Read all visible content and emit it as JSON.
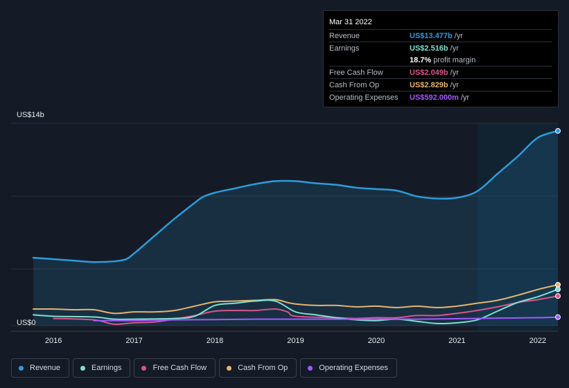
{
  "tooltip": {
    "date": "Mar 31 2022",
    "rows": [
      {
        "label": "Revenue",
        "value": "US$13.477b",
        "unit": "/yr",
        "color": "#2d9cdb"
      },
      {
        "label": "Earnings",
        "value": "US$2.516b",
        "unit": "/yr",
        "color": "#7ee0cf"
      },
      {
        "label": "",
        "value": "18.7%",
        "unit": "profit margin",
        "color": "#ffffff"
      },
      {
        "label": "Free Cash Flow",
        "value": "US$2.049b",
        "unit": "/yr",
        "color": "#d8558a"
      },
      {
        "label": "Cash From Op",
        "value": "US$2.829b",
        "unit": "/yr",
        "color": "#e6b46e"
      },
      {
        "label": "Operating Expenses",
        "value": "US$592.000m",
        "unit": "/yr",
        "color": "#a259ff"
      }
    ]
  },
  "legend": [
    {
      "label": "Revenue",
      "color": "#2d9cdb"
    },
    {
      "label": "Earnings",
      "color": "#7ee0cf"
    },
    {
      "label": "Free Cash Flow",
      "color": "#d8558a"
    },
    {
      "label": "Cash From Op",
      "color": "#e6b46e"
    },
    {
      "label": "Operating Expenses",
      "color": "#a259ff"
    }
  ],
  "chart_data": {
    "type": "area",
    "y_top_label": "US$14b",
    "y_bottom_label": "US$0",
    "ylim": [
      0,
      14
    ],
    "xlim": [
      2015.75,
      2022.25
    ],
    "highlight_start": 2021.25,
    "x_ticks": [
      "2016",
      "2017",
      "2018",
      "2019",
      "2020",
      "2021",
      "2022"
    ],
    "x_tick_values": [
      2016,
      2017,
      2018,
      2019,
      2020,
      2021,
      2022
    ],
    "grid": true,
    "series": [
      {
        "name": "Revenue",
        "color": "#2d9cdb",
        "fill": true,
        "points": [
          [
            2015.75,
            4.7
          ],
          [
            2016.0,
            4.6
          ],
          [
            2016.25,
            4.5
          ],
          [
            2016.5,
            4.4
          ],
          [
            2016.75,
            4.45
          ],
          [
            2016.9,
            4.6
          ],
          [
            2017.0,
            5.0
          ],
          [
            2017.25,
            6.2
          ],
          [
            2017.5,
            7.4
          ],
          [
            2017.75,
            8.5
          ],
          [
            2017.85,
            8.9
          ],
          [
            2018.0,
            9.2
          ],
          [
            2018.25,
            9.5
          ],
          [
            2018.5,
            9.8
          ],
          [
            2018.75,
            10.0
          ],
          [
            2019.0,
            10.0
          ],
          [
            2019.25,
            9.85
          ],
          [
            2019.5,
            9.75
          ],
          [
            2019.75,
            9.55
          ],
          [
            2020.0,
            9.45
          ],
          [
            2020.25,
            9.35
          ],
          [
            2020.5,
            8.95
          ],
          [
            2020.75,
            8.8
          ],
          [
            2021.0,
            8.85
          ],
          [
            2021.25,
            9.3
          ],
          [
            2021.5,
            10.5
          ],
          [
            2021.75,
            11.7
          ],
          [
            2022.0,
            13.0
          ],
          [
            2022.25,
            13.477
          ]
        ]
      },
      {
        "name": "Earnings",
        "color": "#7ee0cf",
        "fill": false,
        "points": [
          [
            2015.75,
            0.75
          ],
          [
            2016.0,
            0.65
          ],
          [
            2016.5,
            0.6
          ],
          [
            2016.75,
            0.45
          ],
          [
            2017.0,
            0.45
          ],
          [
            2017.5,
            0.5
          ],
          [
            2017.75,
            0.65
          ],
          [
            2018.0,
            1.4
          ],
          [
            2018.25,
            1.55
          ],
          [
            2018.5,
            1.7
          ],
          [
            2018.75,
            1.7
          ],
          [
            2019.0,
            0.95
          ],
          [
            2019.25,
            0.75
          ],
          [
            2019.5,
            0.55
          ],
          [
            2019.75,
            0.4
          ],
          [
            2020.0,
            0.35
          ],
          [
            2020.25,
            0.45
          ],
          [
            2020.5,
            0.3
          ],
          [
            2020.75,
            0.15
          ],
          [
            2021.0,
            0.2
          ],
          [
            2021.25,
            0.4
          ],
          [
            2021.5,
            1.0
          ],
          [
            2021.75,
            1.6
          ],
          [
            2022.0,
            2.0
          ],
          [
            2022.25,
            2.516
          ]
        ]
      },
      {
        "name": "Free Cash Flow",
        "color": "#d8558a",
        "fill": false,
        "points": [
          [
            2016.0,
            0.5
          ],
          [
            2016.5,
            0.4
          ],
          [
            2016.75,
            0.1
          ],
          [
            2017.0,
            0.2
          ],
          [
            2017.25,
            0.25
          ],
          [
            2017.5,
            0.45
          ],
          [
            2017.75,
            0.7
          ],
          [
            2018.0,
            1.0
          ],
          [
            2018.25,
            1.05
          ],
          [
            2018.5,
            1.05
          ],
          [
            2018.75,
            1.15
          ],
          [
            2018.9,
            0.95
          ],
          [
            2019.0,
            0.65
          ],
          [
            2019.5,
            0.55
          ],
          [
            2019.75,
            0.5
          ],
          [
            2020.0,
            0.55
          ],
          [
            2020.25,
            0.55
          ],
          [
            2020.5,
            0.7
          ],
          [
            2020.75,
            0.7
          ],
          [
            2021.0,
            0.85
          ],
          [
            2021.25,
            1.05
          ],
          [
            2021.5,
            1.3
          ],
          [
            2021.75,
            1.6
          ],
          [
            2022.0,
            1.8
          ],
          [
            2022.25,
            2.049
          ]
        ]
      },
      {
        "name": "Cash From Op",
        "color": "#e6b46e",
        "fill": false,
        "points": [
          [
            2015.75,
            1.15
          ],
          [
            2016.0,
            1.15
          ],
          [
            2016.25,
            1.1
          ],
          [
            2016.5,
            1.1
          ],
          [
            2016.75,
            0.85
          ],
          [
            2017.0,
            0.95
          ],
          [
            2017.25,
            0.95
          ],
          [
            2017.5,
            1.05
          ],
          [
            2017.75,
            1.35
          ],
          [
            2018.0,
            1.65
          ],
          [
            2018.25,
            1.7
          ],
          [
            2018.5,
            1.75
          ],
          [
            2018.75,
            1.8
          ],
          [
            2018.9,
            1.6
          ],
          [
            2019.0,
            1.5
          ],
          [
            2019.25,
            1.4
          ],
          [
            2019.5,
            1.4
          ],
          [
            2019.75,
            1.3
          ],
          [
            2020.0,
            1.35
          ],
          [
            2020.25,
            1.25
          ],
          [
            2020.5,
            1.35
          ],
          [
            2020.75,
            1.25
          ],
          [
            2021.0,
            1.35
          ],
          [
            2021.25,
            1.55
          ],
          [
            2021.5,
            1.75
          ],
          [
            2021.75,
            2.1
          ],
          [
            2022.0,
            2.5
          ],
          [
            2022.25,
            2.829
          ]
        ]
      },
      {
        "name": "Operating Expenses",
        "color": "#a259ff",
        "fill": false,
        "points": [
          [
            2016.5,
            0.35
          ],
          [
            2017.0,
            0.35
          ],
          [
            2017.5,
            0.4
          ],
          [
            2018.0,
            0.42
          ],
          [
            2018.5,
            0.45
          ],
          [
            2019.0,
            0.45
          ],
          [
            2019.5,
            0.45
          ],
          [
            2020.0,
            0.45
          ],
          [
            2020.5,
            0.45
          ],
          [
            2021.0,
            0.48
          ],
          [
            2021.5,
            0.52
          ],
          [
            2022.0,
            0.55
          ],
          [
            2022.25,
            0.592
          ]
        ]
      }
    ]
  }
}
